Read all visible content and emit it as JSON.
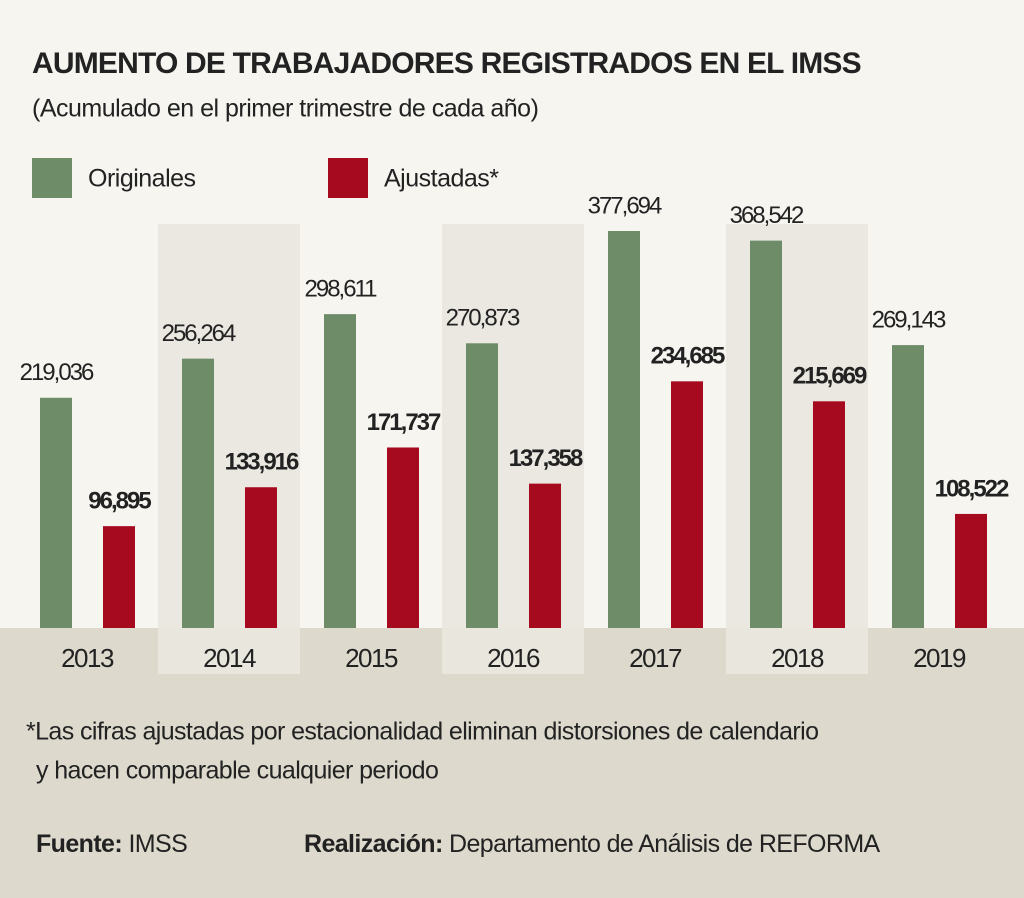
{
  "chart_data": {
    "type": "bar",
    "title": "AUMENTO DE TRABAJADORES REGISTRADOS EN EL IMSS",
    "subtitle": "(Acumulado en el primer trimestre de cada año)",
    "categories": [
      "2013",
      "2014",
      "2015",
      "2016",
      "2017",
      "2018",
      "2019"
    ],
    "series": [
      {
        "name": "Originales",
        "color": "#6f8c68",
        "values": [
          219036,
          256264,
          298611,
          270873,
          377694,
          368542,
          269143
        ],
        "value_labels": [
          "219,036",
          "256,264",
          "298,611",
          "270,873",
          "377,694",
          "368,542",
          "269,143"
        ]
      },
      {
        "name": "Ajustadas*",
        "color": "#a50a1f",
        "values": [
          96895,
          133916,
          171737,
          137358,
          234685,
          215669,
          108522
        ],
        "value_labels": [
          "96,895",
          "133,916",
          "171,737",
          "137,358",
          "234,685",
          "215,669",
          "108,522"
        ]
      }
    ],
    "note": [
      "*Las cifras ajustadas por estacionalidad eliminan distorsiones de calendario",
      "y hacen comparable cualquier periodo"
    ],
    "source": {
      "label": "Fuente:",
      "text": "IMSS"
    },
    "credit": {
      "label": "Realización:",
      "text": "Departamento de Análisis de REFORMA"
    }
  }
}
